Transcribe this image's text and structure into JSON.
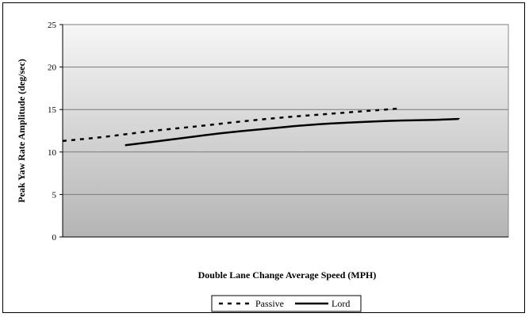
{
  "chart_data": {
    "type": "line",
    "title": "",
    "xlabel": "Double Lane Change Average Speed (MPH)",
    "ylabel": "Peak Yaw Rate Amplitude (deg/sec)",
    "ylim": [
      0,
      25
    ],
    "yticks": [
      0,
      5,
      10,
      15,
      20,
      25
    ],
    "xlim": [
      0,
      10
    ],
    "xticks_labeled": false,
    "grid": true,
    "legend_position": "bottom",
    "plot_background": "gradient-gray",
    "series": [
      {
        "name": "Passive",
        "style": "dashed",
        "color": "#000000",
        "x": [
          0,
          1,
          2,
          3,
          4,
          5,
          6,
          7,
          7.5
        ],
        "y": [
          11.3,
          11.8,
          12.5,
          13.0,
          13.6,
          14.1,
          14.5,
          14.9,
          15.1
        ]
      },
      {
        "name": "Lord",
        "style": "solid",
        "color": "#000000",
        "x": [
          1.4,
          2.5,
          3.5,
          4.5,
          5.5,
          6.5,
          7.5,
          8.5,
          8.9
        ],
        "y": [
          10.8,
          11.5,
          12.2,
          12.7,
          13.2,
          13.5,
          13.7,
          13.8,
          13.9
        ]
      }
    ]
  }
}
